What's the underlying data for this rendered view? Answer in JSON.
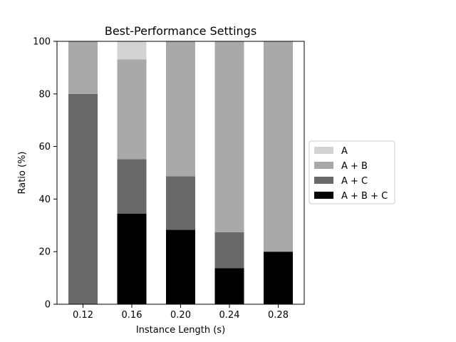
{
  "chart_data": {
    "type": "bar",
    "stacked": true,
    "title": "Best-Performance Settings",
    "xlabel": "Instance Length (s)",
    "ylabel": "Ratio (%)",
    "categories": [
      "0.12",
      "0.16",
      "0.20",
      "0.24",
      "0.28"
    ],
    "ylim": [
      0,
      100
    ],
    "yticks": [
      "0",
      "20",
      "40",
      "60",
      "80",
      "100"
    ],
    "grid": false,
    "legend_position": "center-right",
    "series": [
      {
        "name": "A + B + C",
        "color": "#000000",
        "values": [
          0,
          34.5,
          28.3,
          13.7,
          20
        ]
      },
      {
        "name": "A + C",
        "color": "#696969",
        "values": [
          80,
          20.7,
          20.4,
          13.7,
          0
        ]
      },
      {
        "name": "A + B",
        "color": "#a9a9a9",
        "values": [
          20,
          37.9,
          51.3,
          72.6,
          80
        ]
      },
      {
        "name": "A",
        "color": "#d3d3d3",
        "values": [
          0,
          6.9,
          0,
          0,
          0
        ]
      }
    ],
    "legend_order": [
      "A",
      "A + B",
      "A + C",
      "A + B + C"
    ]
  }
}
